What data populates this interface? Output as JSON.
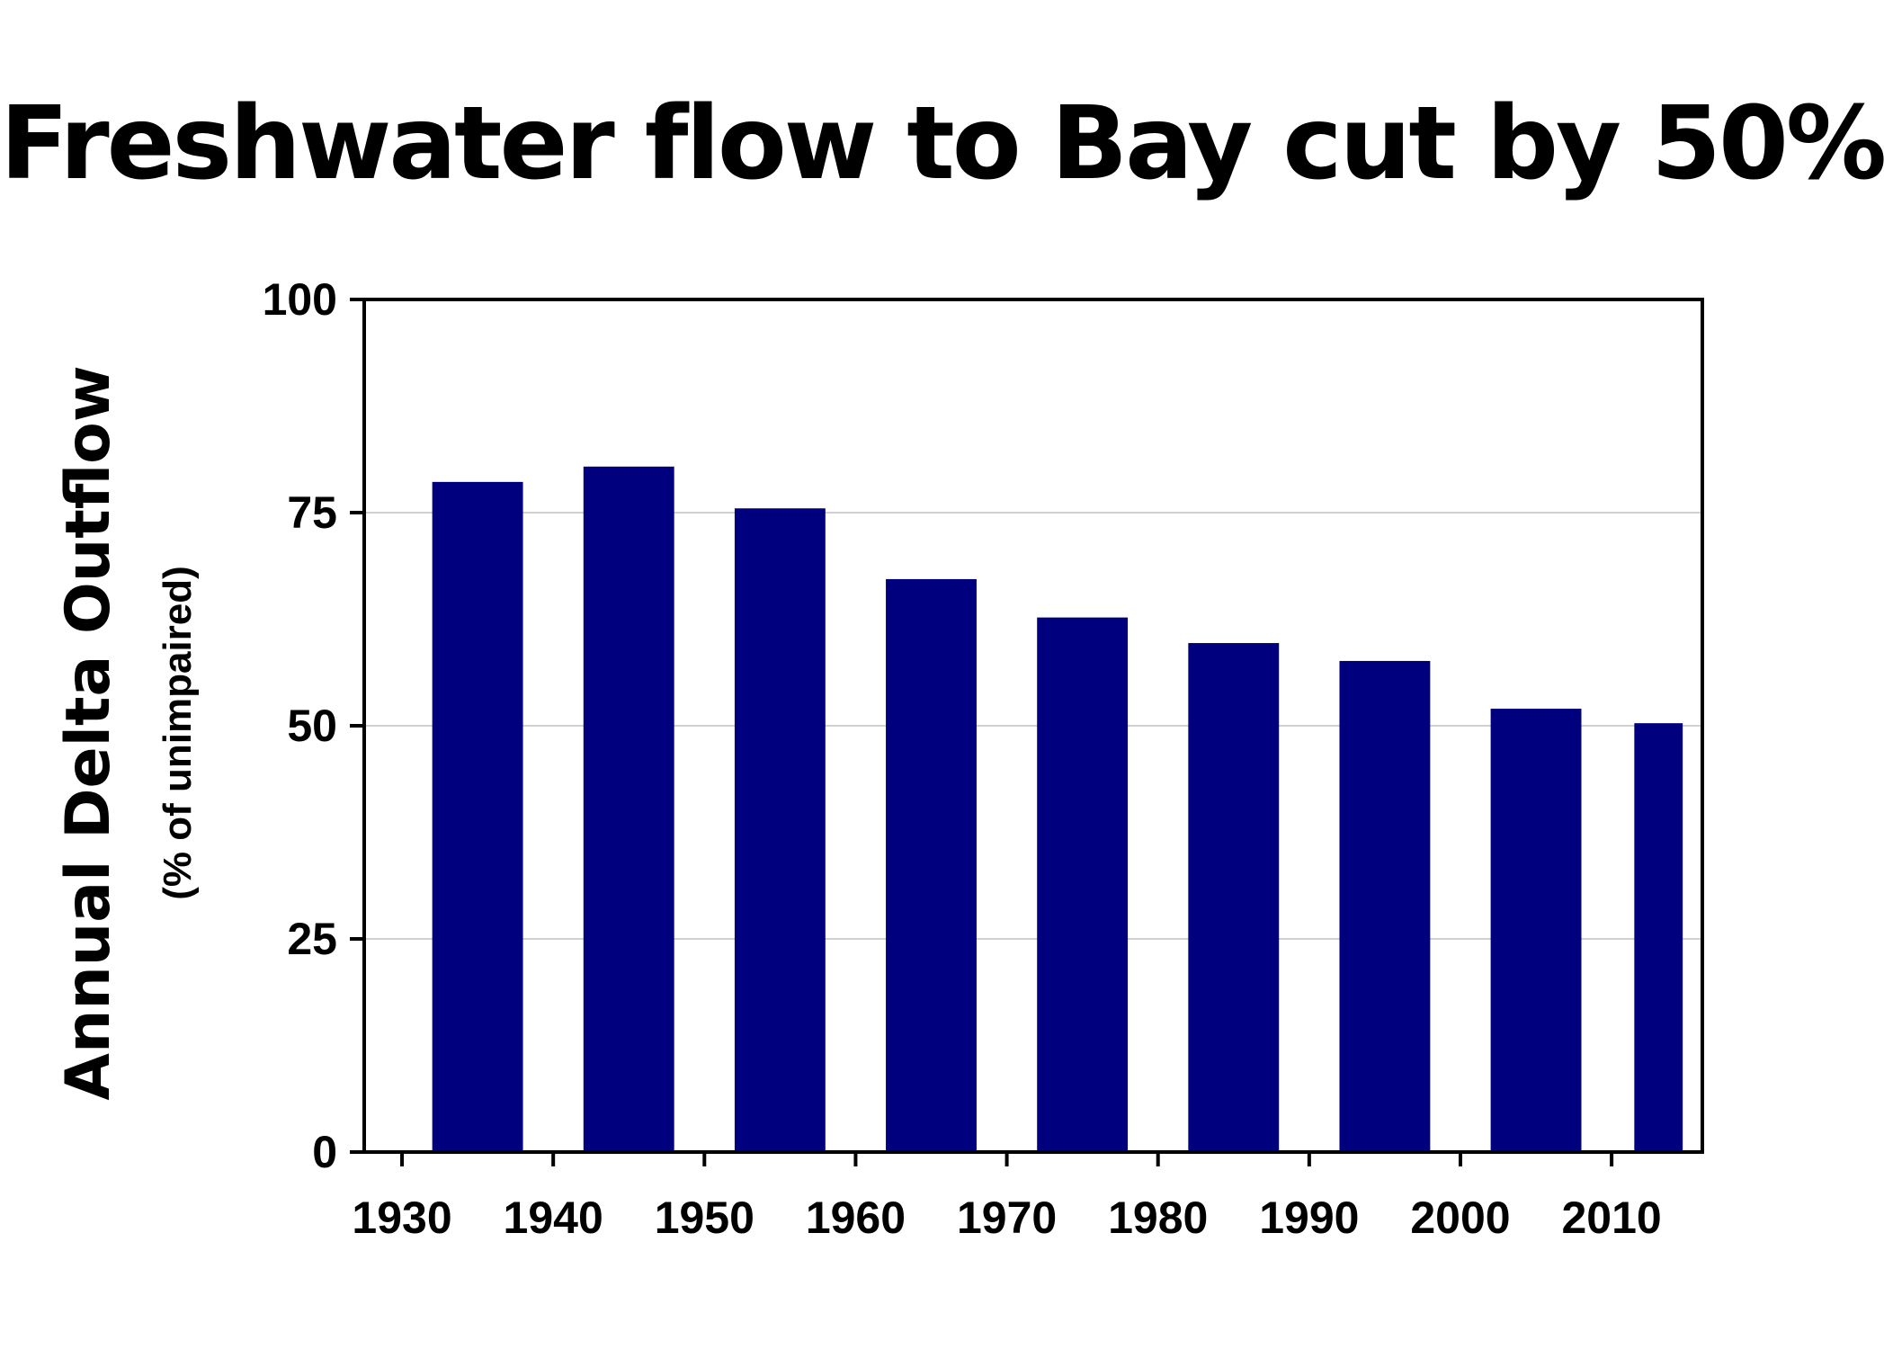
{
  "title": "Freshwater flow to Bay cut by 50%",
  "colors": {
    "bar": "#00007E",
    "axis": "#000000",
    "grid": "#C0C0C0",
    "background": "#FFFFFF"
  },
  "chart_data": {
    "type": "bar",
    "title": "Freshwater flow to Bay cut by 50%",
    "ylabel": "Annual Delta Outflow",
    "ylabel_sub": "(% of unimpaired)",
    "xlabel": "",
    "grid": true,
    "grid_axis": "y",
    "ylim": [
      0,
      100
    ],
    "yticks": [
      0,
      25,
      50,
      75,
      100
    ],
    "xlim": [
      1927.5,
      2016
    ],
    "xticks": [
      1930,
      1940,
      1950,
      1960,
      1970,
      1980,
      1990,
      2000,
      2010
    ],
    "bars": [
      {
        "start": 1932,
        "end": 1938,
        "value": 78.6
      },
      {
        "start": 1942,
        "end": 1948,
        "value": 80.4
      },
      {
        "start": 1952,
        "end": 1958,
        "value": 75.5
      },
      {
        "start": 1962,
        "end": 1968,
        "value": 67.2
      },
      {
        "start": 1972,
        "end": 1978,
        "value": 62.7
      },
      {
        "start": 1982,
        "end": 1988,
        "value": 59.7
      },
      {
        "start": 1992,
        "end": 1998,
        "value": 57.6
      },
      {
        "start": 2002,
        "end": 2008,
        "value": 52.0
      },
      {
        "start": 2011.5,
        "end": 2014.7,
        "value": 50.3
      }
    ]
  }
}
